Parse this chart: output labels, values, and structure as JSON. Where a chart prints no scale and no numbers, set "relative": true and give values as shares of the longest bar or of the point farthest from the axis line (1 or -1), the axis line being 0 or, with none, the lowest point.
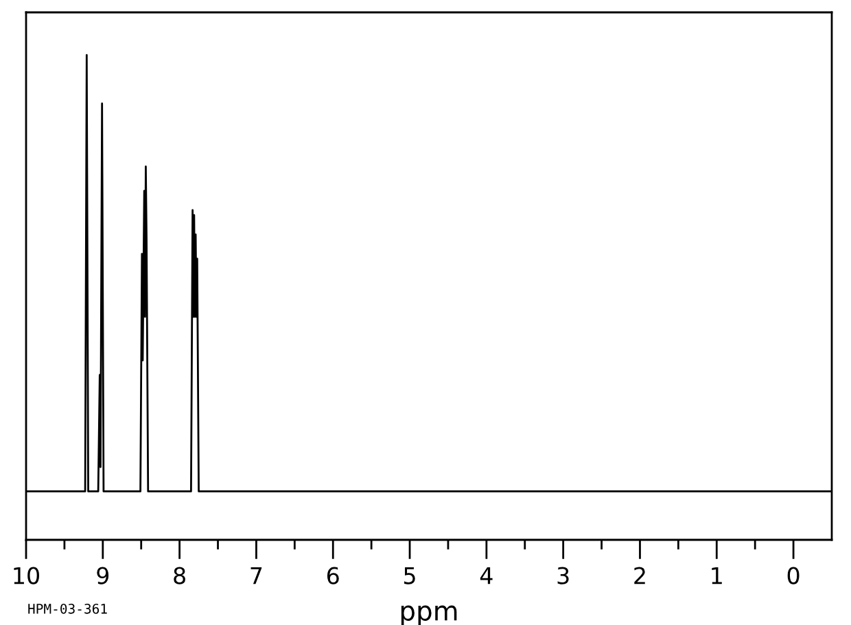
{
  "chart_data": {
    "type": "line",
    "xlabel": "ppm",
    "relative": true,
    "color": "#000000",
    "annotations": [
      "HPM-03-361"
    ],
    "xlim": [
      10,
      -0.5
    ],
    "xticks": [
      10,
      {
        "value": 9.5,
        "label": null
      },
      9,
      {
        "value": 8.5,
        "label": null
      },
      8,
      {
        "value": 7.5,
        "label": null
      },
      7,
      {
        "value": 6.5,
        "label": null
      },
      6,
      {
        "value": 5.5,
        "label": null
      },
      5,
      {
        "value": 4.5,
        "label": null
      },
      4,
      {
        "value": 3.5,
        "label": null
      },
      3,
      {
        "value": 2.5,
        "label": null
      },
      2,
      {
        "value": 1.5,
        "label": null
      },
      1,
      {
        "value": 0.5,
        "label": null
      },
      0
    ],
    "tick_labels": "x",
    "x": [
      10,
      9.23,
      9.21,
      9.19,
      9.06,
      9.04,
      9.03,
      9.01,
      8.99,
      8.51,
      8.49,
      8.48,
      8.46,
      8.45,
      8.44,
      8.43,
      8.41,
      7.85,
      7.83,
      7.82,
      7.81,
      7.8,
      7.79,
      7.78,
      7.77,
      7.75,
      -0.5
    ],
    "values": [
      0.1,
      0.1,
      1.0,
      0.1,
      0.1,
      0.34,
      0.15,
      0.9,
      0.1,
      0.1,
      0.59,
      0.37,
      0.72,
      0.46,
      0.77,
      0.62,
      0.1,
      0.1,
      0.68,
      0.46,
      0.67,
      0.46,
      0.63,
      0.46,
      0.58,
      0.1,
      0.1
    ]
  }
}
